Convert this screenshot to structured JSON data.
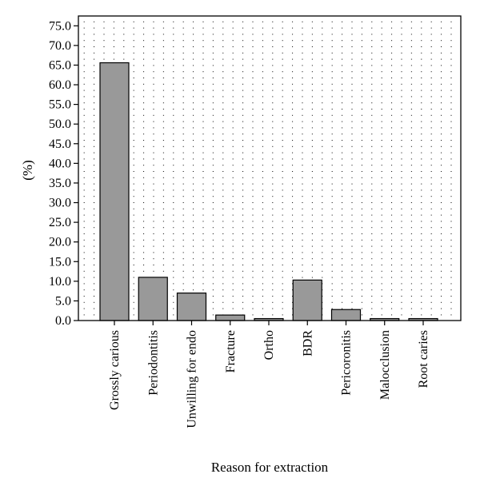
{
  "chart_data": {
    "type": "bar",
    "title": "",
    "xlabel": "Reason for extraction",
    "ylabel": "(%)",
    "categories": [
      "Grossly carious",
      "Periodontitis",
      "Unwilling for endo",
      "Fracture",
      "Ortho",
      "BDR",
      "Pericoronitis",
      "Malocclusion",
      "Root caries"
    ],
    "values": [
      65.6,
      11.0,
      7.0,
      1.4,
      0.5,
      10.3,
      2.8,
      0.5,
      0.5
    ],
    "ylim": [
      0,
      77.5
    ],
    "yticks": [
      "0.0",
      "5.0",
      "10.0",
      "15.0",
      "20.0",
      "25.0",
      "30.0",
      "35.0",
      "40.0",
      "45.0",
      "50.0",
      "55.0",
      "60.0",
      "65.0",
      "70.0",
      "75.0"
    ],
    "grid": true,
    "bar_color": "#999999",
    "bar_edge_color": "#000000"
  }
}
